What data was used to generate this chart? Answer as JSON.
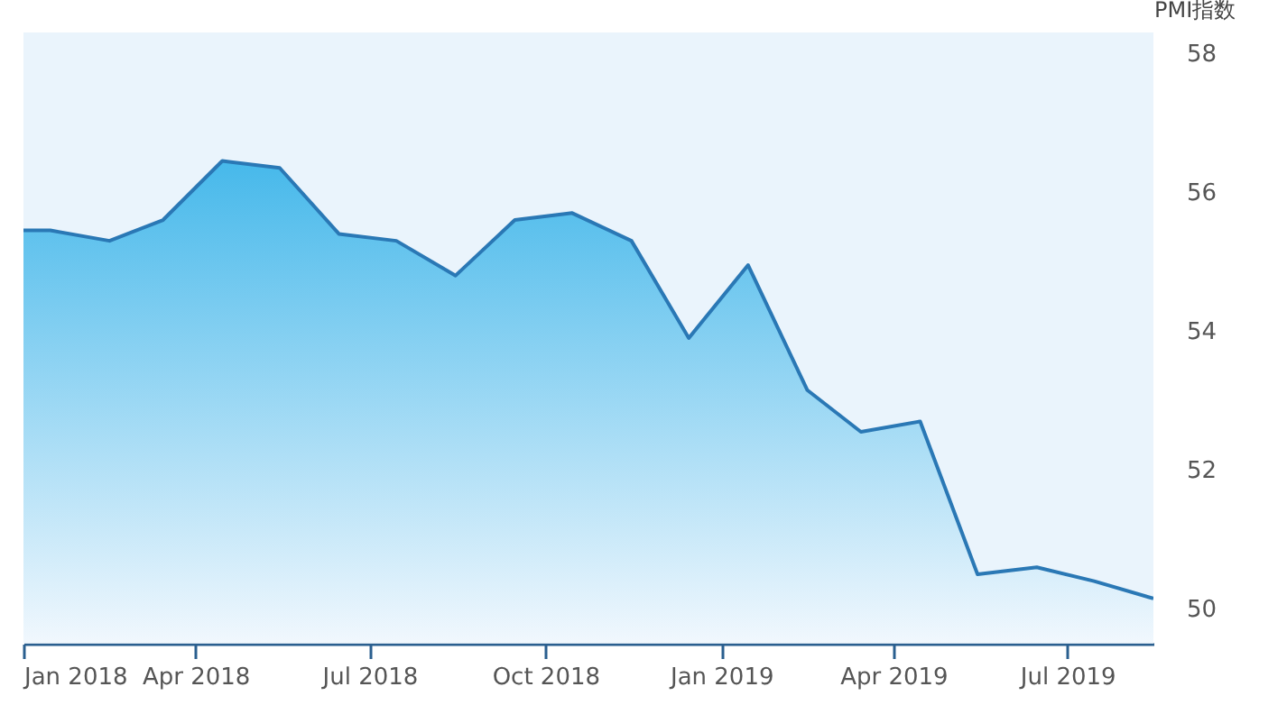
{
  "chart_data": {
    "type": "area",
    "ylabel": "PMI指数",
    "x": [
      "2018-01-01",
      "2018-01-15",
      "2018-02-15",
      "2018-03-15",
      "2018-04-15",
      "2018-05-15",
      "2018-06-15",
      "2018-07-15",
      "2018-08-15",
      "2018-09-15",
      "2018-10-15",
      "2018-11-15",
      "2018-12-15",
      "2019-01-15",
      "2019-02-15",
      "2019-03-15",
      "2019-04-15",
      "2019-05-15",
      "2019-06-15",
      "2019-07-15",
      "2019-08-15"
    ],
    "series": [
      {
        "color": "#2a78b5",
        "values": [
          55.45,
          55.45,
          55.3,
          55.6,
          56.45,
          56.35,
          55.4,
          55.3,
          54.8,
          55.6,
          55.7,
          55.3,
          53.9,
          54.95,
          53.15,
          52.55,
          52.7,
          50.5,
          50.6,
          50.4,
          50.15
        ]
      }
    ],
    "xlim": [
      "2018-01-01",
      "2019-08-15"
    ],
    "xticks": [
      {
        "value": "2018-01",
        "label": "Jan 2018"
      },
      {
        "value": "2018-04",
        "label": "Apr 2018"
      },
      {
        "value": "2018-07",
        "label": "Jul 2018"
      },
      {
        "value": "2018-10",
        "label": "Oct 2018"
      },
      {
        "value": "2019-01",
        "label": "Jan 2019"
      },
      {
        "value": "2019-04",
        "label": "Apr 2019"
      },
      {
        "value": "2019-07",
        "label": "Jul 2019"
      }
    ],
    "ylim": [
      49.5,
      58.3
    ],
    "yticks": [
      50,
      52,
      54,
      56,
      58
    ],
    "grid": false
  }
}
